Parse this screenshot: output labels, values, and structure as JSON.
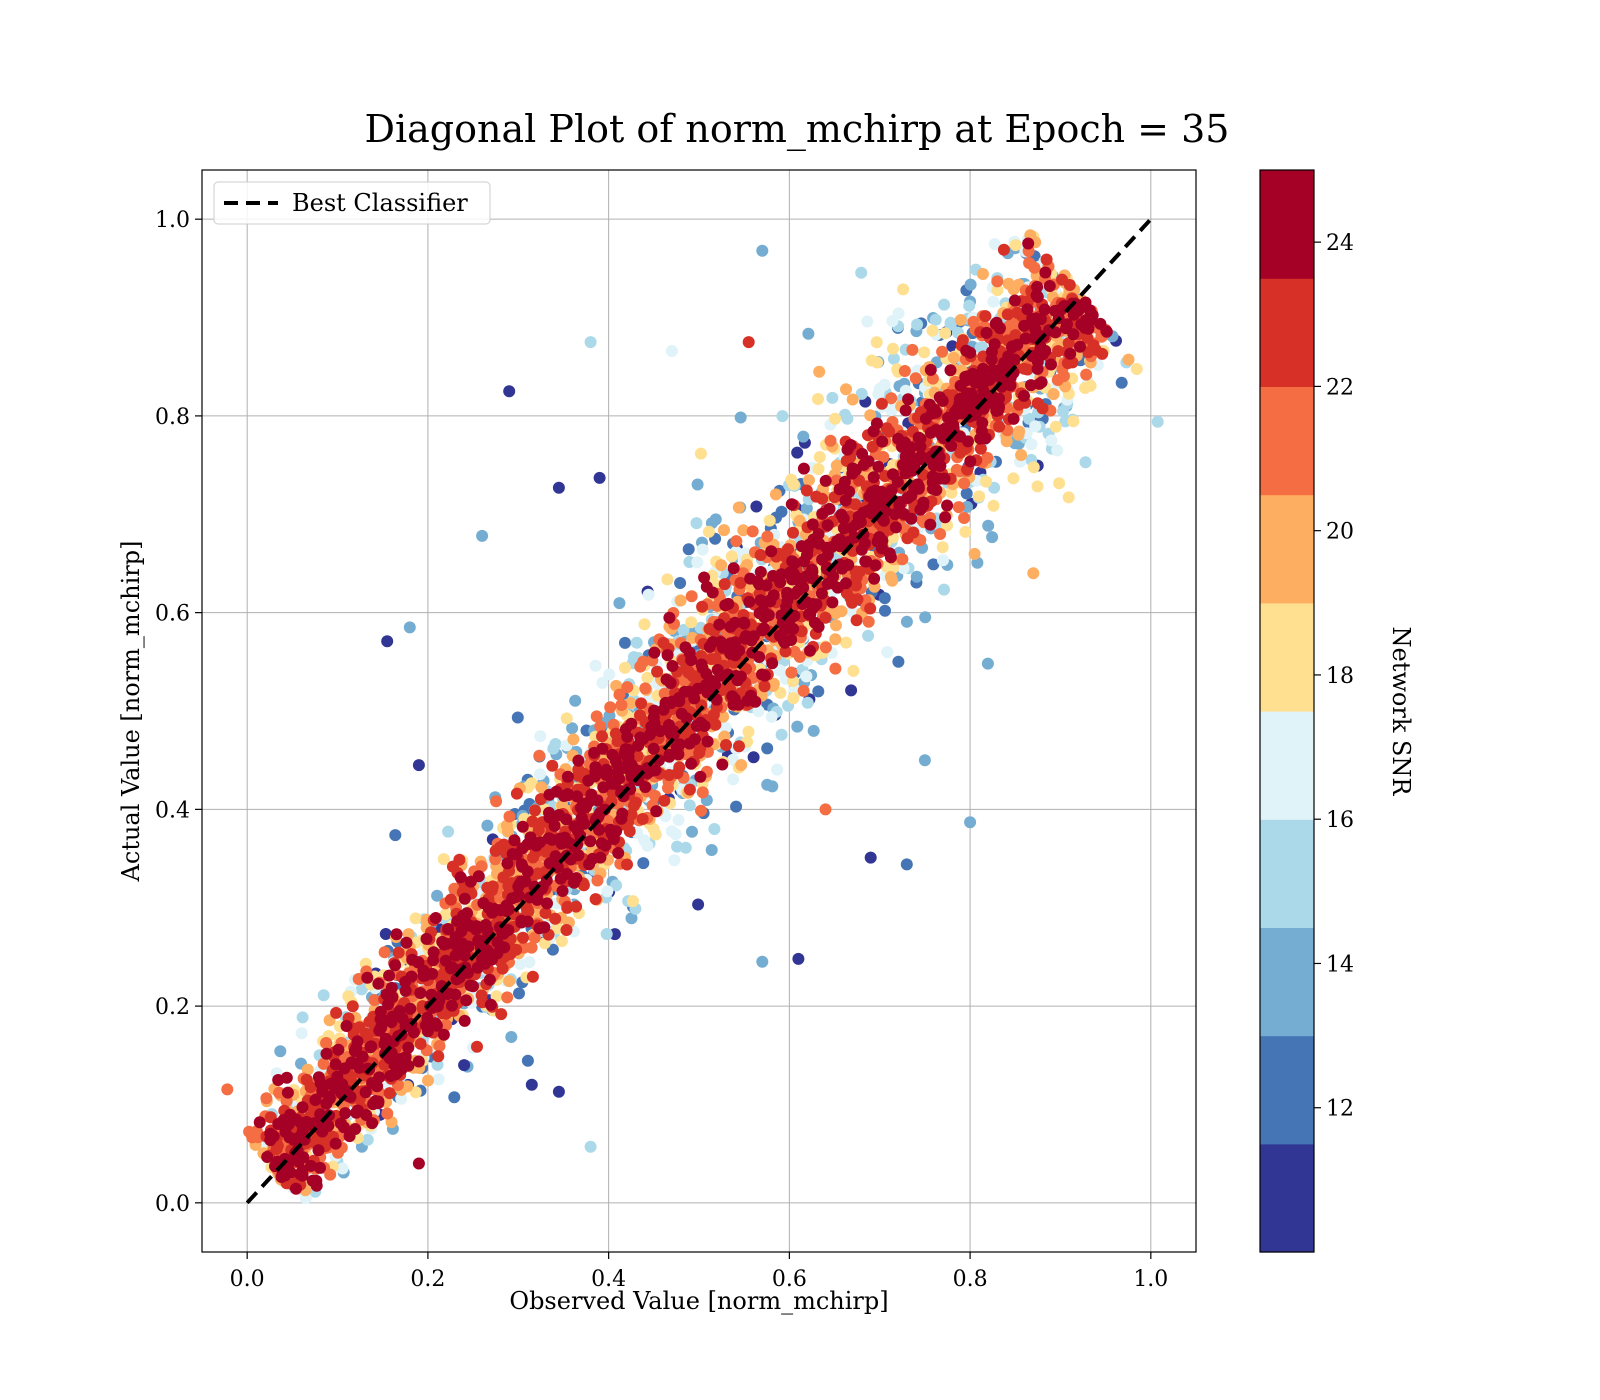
{
  "chart_data": {
    "type": "scatter",
    "title": "Diagonal Plot of norm_mchirp at Epoch = 35",
    "xlabel": "Observed Value [norm_mchirp]",
    "ylabel": "Actual Value [norm_mchirp]",
    "xlim": [
      -0.05,
      1.05
    ],
    "ylim": [
      -0.05,
      1.05
    ],
    "xticks": [
      "0.0",
      "0.2",
      "0.4",
      "0.6",
      "0.8",
      "1.0"
    ],
    "yticks": [
      "0.0",
      "0.2",
      "0.4",
      "0.6",
      "0.8",
      "1.0"
    ],
    "grid": true,
    "legend": {
      "placement": "upper-left",
      "entries": [
        "Best Classifier"
      ]
    },
    "reference_line": {
      "name": "Best Classifier",
      "style": "dashed",
      "color": "#000000",
      "x": [
        0.0,
        1.0
      ],
      "y": [
        0.0,
        1.0
      ]
    },
    "colorbar": {
      "label": "Network SNR",
      "range": [
        10,
        25
      ],
      "ticks": [
        "12",
        "14",
        "16",
        "18",
        "20",
        "22",
        "24"
      ],
      "tick_values": [
        12,
        14,
        16,
        18,
        20,
        22,
        24
      ],
      "colors": [
        "#313695",
        "#4575b4",
        "#74add1",
        "#abd9e9",
        "#e0f3f8",
        "#fee090",
        "#fdae61",
        "#f46d43",
        "#d73027",
        "#a50026"
      ]
    },
    "series": [
      {
        "points": [
          [
            0.29,
            0.825
          ],
          [
            0.38,
            0.875
          ],
          [
            0.39,
            0.737
          ],
          [
            0.345,
            0.727
          ],
          [
            0.26,
            0.678
          ],
          [
            0.18,
            0.585
          ],
          [
            0.155,
            0.571
          ],
          [
            0.19,
            0.445
          ],
          [
            0.61,
            0.248
          ],
          [
            0.19,
            0.04
          ],
          [
            0.38,
            0.057
          ],
          [
            0.555,
            0.875
          ],
          [
            0.57,
            0.968
          ],
          [
            0.73,
            0.344
          ],
          [
            0.69,
            0.351
          ],
          [
            0.8,
            0.387
          ],
          [
            0.87,
            0.64
          ],
          [
            0.89,
            0.775
          ],
          [
            0.47,
            0.866
          ],
          [
            0.315,
            0.12
          ],
          [
            0.345,
            0.113
          ],
          [
            0.24,
            0.14
          ],
          [
            0.57,
            0.245
          ],
          [
            0.64,
            0.4
          ],
          [
            0.75,
            0.45
          ]
        ],
        "snr": [
          11,
          15,
          11,
          11,
          13,
          13,
          11,
          11,
          11,
          24,
          15,
          22,
          13,
          12,
          11,
          13,
          19,
          17,
          16,
          11,
          11,
          11,
          13,
          21,
          14
        ]
      }
    ],
    "band": {
      "description_values": "dense cloud along y = x from 0.03 to 0.92",
      "x_range": [
        0.03,
        0.92
      ]
    }
  }
}
